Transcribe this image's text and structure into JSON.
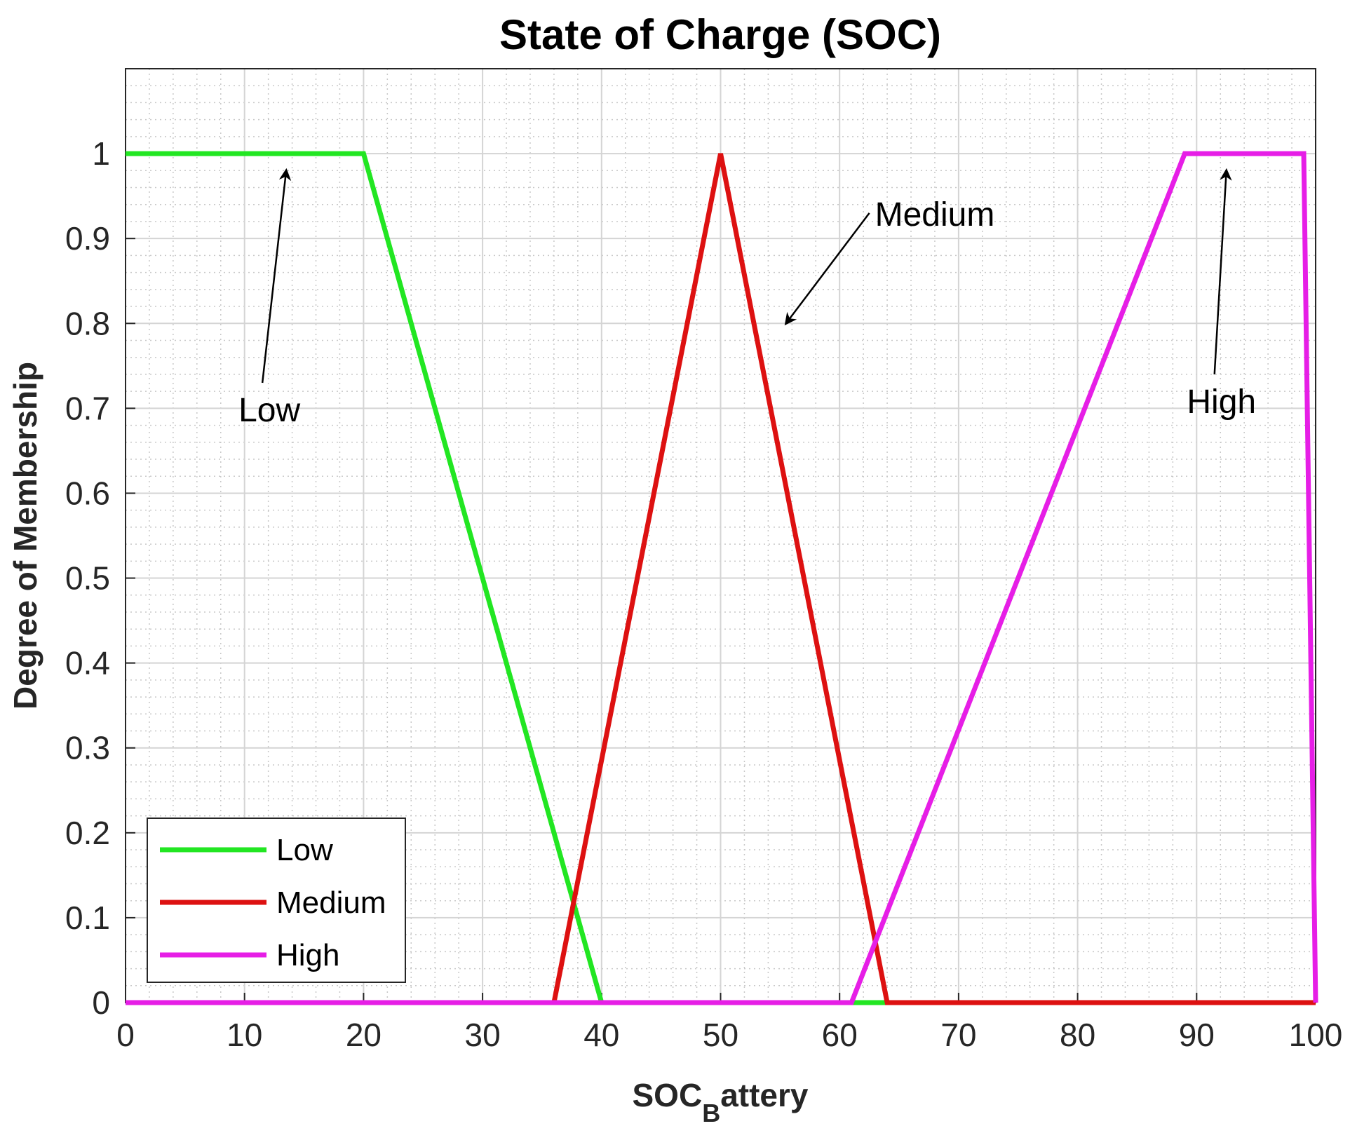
{
  "chart_data": {
    "type": "line",
    "title": "State of Charge (SOC)",
    "xlabel_main": "SOC",
    "xlabel_sub": "B",
    "xlabel_rest": "attery",
    "ylabel": "Degree of Membership",
    "xlim": [
      0,
      100
    ],
    "ylim": [
      0,
      1.1
    ],
    "xticks": [
      0,
      10,
      20,
      30,
      40,
      50,
      60,
      70,
      80,
      90,
      100
    ],
    "yticks": [
      0,
      0.1,
      0.2,
      0.3,
      0.4,
      0.5,
      0.6,
      0.7,
      0.8,
      0.9,
      1
    ],
    "xtick_labels": [
      "0",
      "10",
      "20",
      "30",
      "40",
      "50",
      "60",
      "70",
      "80",
      "90",
      "100"
    ],
    "ytick_labels": [
      "0",
      "0.1",
      "0.2",
      "0.3",
      "0.4",
      "0.5",
      "0.6",
      "0.7",
      "0.8",
      "0.9",
      "1"
    ],
    "grid": true,
    "minor_grid": true,
    "legend_position": "bottom-left",
    "series": [
      {
        "name": "Low",
        "color": "#22e622",
        "x": [
          0,
          20,
          40,
          64
        ],
        "y": [
          1,
          1,
          0,
          0
        ]
      },
      {
        "name": "Medium",
        "color": "#dd1111",
        "x": [
          36,
          50,
          64,
          100
        ],
        "y": [
          0,
          1,
          0,
          0
        ]
      },
      {
        "name": "High",
        "color": "#e61ee6",
        "x": [
          0,
          61,
          89,
          99,
          100
        ],
        "y": [
          0,
          0,
          1,
          1,
          0
        ]
      }
    ],
    "annotations": [
      {
        "text": "Low",
        "tail": [
          11.5,
          0.73
        ],
        "head": [
          13.5,
          0.98
        ]
      },
      {
        "text": "Medium",
        "tail": [
          62.5,
          0.93
        ],
        "head": [
          55.5,
          0.8
        ]
      },
      {
        "text": "High",
        "tail": [
          91.5,
          0.74
        ],
        "head": [
          92.5,
          0.98
        ]
      }
    ]
  }
}
